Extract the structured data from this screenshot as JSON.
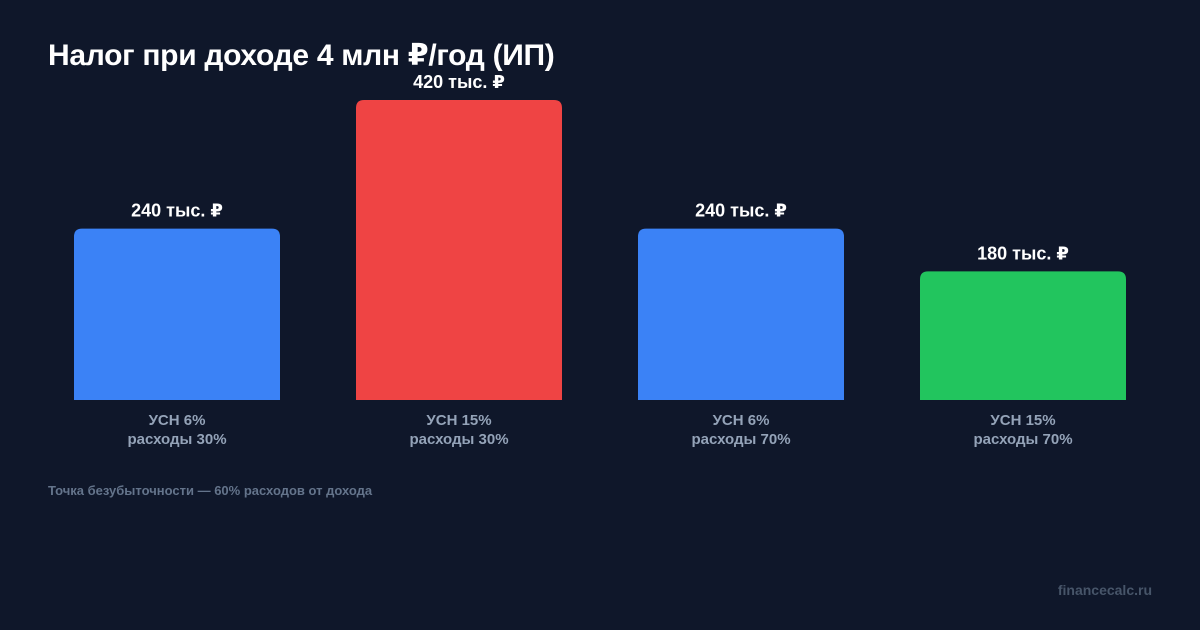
{
  "chart_data": {
    "type": "bar",
    "title": "Налог при доходе 4 млн ₽/год (ИП)",
    "categories": [
      [
        "УСН 6%",
        "расходы 30%"
      ],
      [
        "УСН 15%",
        "расходы 30%"
      ],
      [
        "УСН 6%",
        "расходы 70%"
      ],
      [
        "УСН 15%",
        "расходы 70%"
      ]
    ],
    "values": [
      240,
      420,
      240,
      180
    ],
    "value_labels": [
      "240 тыс. ₽",
      "420 тыс. ₽",
      "240 тыс. ₽",
      "180 тыс. ₽"
    ],
    "colors": [
      "#3b82f6",
      "#ef4444",
      "#3b82f6",
      "#22c55e"
    ],
    "ylim": [
      0,
      420
    ],
    "grid": false,
    "xlabel": "",
    "ylabel": ""
  },
  "note": "Точка безубыточности — 60% расходов от дохода",
  "watermark": "financecalc.ru",
  "theme": {
    "background": "#0f172a"
  }
}
